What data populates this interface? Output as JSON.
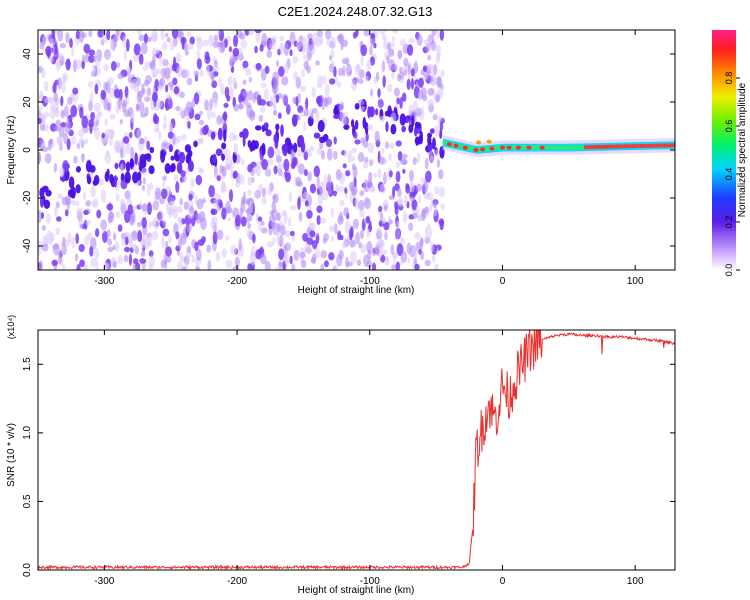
{
  "title": "C2E1.2024.248.07.32.G13",
  "chart_data": [
    {
      "type": "heatmap",
      "xlabel": "Height of straight line (km)",
      "ylabel": "Frequency (Hz)",
      "xlim": [
        -350,
        130
      ],
      "ylim": [
        -50,
        50
      ],
      "x_ticks": [
        -300,
        -200,
        -100,
        0,
        100
      ],
      "y_ticks": [
        -40,
        -20,
        0,
        20,
        40
      ],
      "colorbar": {
        "label": "Normalized spectral amplitude",
        "range": [
          0.0,
          1.0
        ],
        "ticks": [
          "0.0",
          "0.2",
          "0.4",
          "0.6",
          "0.8"
        ]
      },
      "ridge": {
        "description_points": [
          [
            -350,
            -18
          ],
          [
            -300,
            -10
          ],
          [
            -250,
            -4
          ],
          [
            -200,
            3
          ],
          [
            -150,
            7
          ],
          [
            -110,
            14
          ],
          [
            -60,
            7
          ],
          [
            -45,
            3
          ],
          [
            -20,
            0
          ],
          [
            0,
            1
          ],
          [
            50,
            1
          ],
          [
            130,
            2
          ]
        ]
      },
      "noise_region_x": [
        -350,
        -45
      ],
      "signal_region_x": [
        -45,
        130
      ]
    },
    {
      "type": "line",
      "xlabel": "Height of straight line (km)",
      "ylabel": "SNR (10 * v/v)",
      "y_multiplier": "(x10⁴)",
      "xlim": [
        -350,
        130
      ],
      "ylim": [
        0,
        1.75
      ],
      "x_ticks": [
        -300,
        -200,
        -100,
        0,
        100
      ],
      "y_ticks": [
        "0.0",
        "0.5",
        "1.0",
        "1.5"
      ],
      "series": [
        {
          "color": "#e8302f",
          "x": [
            -350,
            -300,
            -250,
            -200,
            -150,
            -100,
            -50,
            -30,
            -25,
            -22,
            -20,
            -15,
            -10,
            -5,
            0,
            5,
            10,
            15,
            20,
            30,
            40,
            50,
            60,
            70,
            80,
            90,
            100,
            110,
            120,
            130
          ],
          "y": [
            0.02,
            0.02,
            0.02,
            0.02,
            0.02,
            0.02,
            0.02,
            0.02,
            0.05,
            0.35,
            0.85,
            1.05,
            1.2,
            1.1,
            1.35,
            1.25,
            1.4,
            1.5,
            1.6,
            1.68,
            1.71,
            1.72,
            1.71,
            1.71,
            1.7,
            1.7,
            1.69,
            1.68,
            1.67,
            1.65
          ]
        }
      ]
    }
  ]
}
